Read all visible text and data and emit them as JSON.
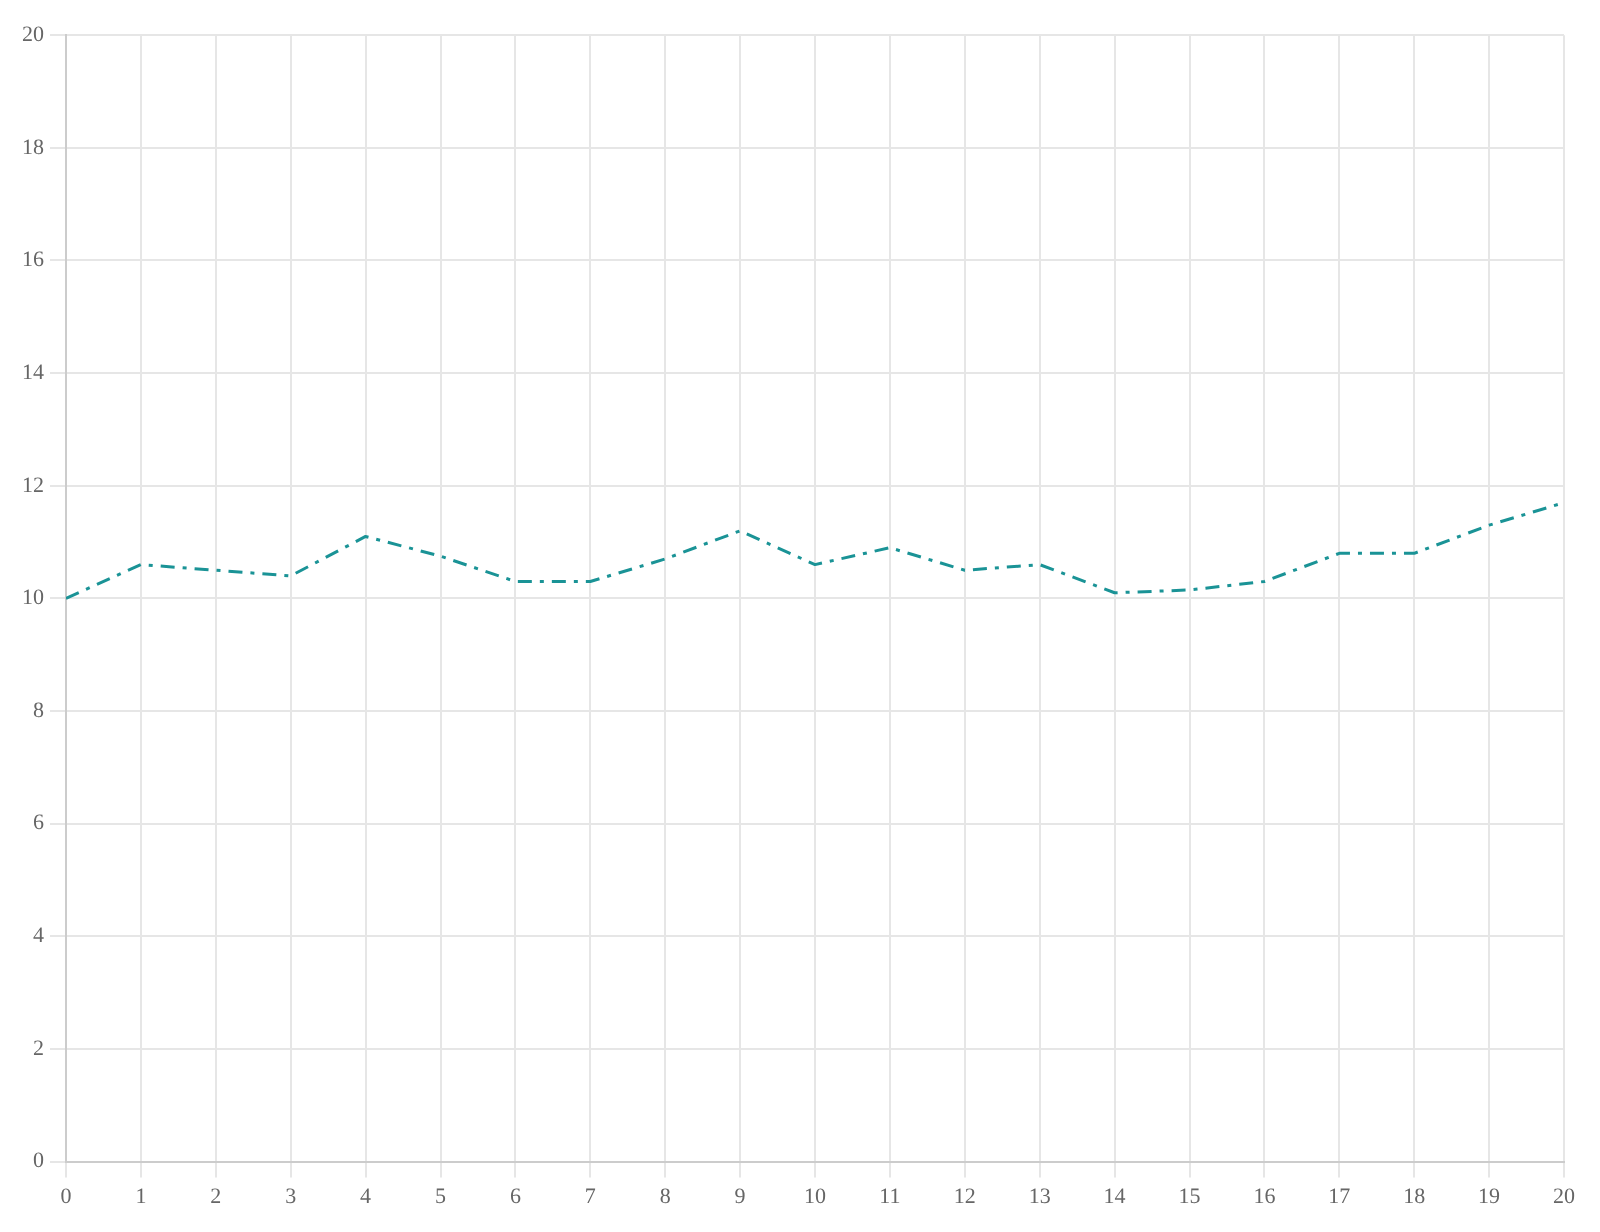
{
  "chart_data": {
    "type": "line",
    "x": [
      0,
      1,
      2,
      3,
      4,
      5,
      6,
      7,
      8,
      9,
      10,
      11,
      12,
      13,
      14,
      15,
      16,
      17,
      18,
      19,
      20
    ],
    "series": [
      {
        "color": "#1a9396",
        "values": [
          10.0,
          10.6,
          10.5,
          10.4,
          11.1,
          10.75,
          10.3,
          10.3,
          10.7,
          11.2,
          10.6,
          10.9,
          10.5,
          10.6,
          10.1,
          10.15,
          10.3,
          10.8,
          10.8,
          11.3,
          11.7
        ]
      }
    ],
    "xlim": [
      0,
      20
    ],
    "xticks": [
      0,
      1,
      2,
      3,
      4,
      5,
      6,
      7,
      8,
      9,
      10,
      11,
      12,
      13,
      14,
      15,
      16,
      17,
      18,
      19,
      20
    ],
    "ylim": [
      0,
      20
    ],
    "yticks": [
      0,
      2,
      4,
      6,
      8,
      10,
      12,
      14,
      16,
      18,
      20
    ],
    "grid": true,
    "legend": false,
    "marker": "none",
    "line_style": "dashed"
  }
}
